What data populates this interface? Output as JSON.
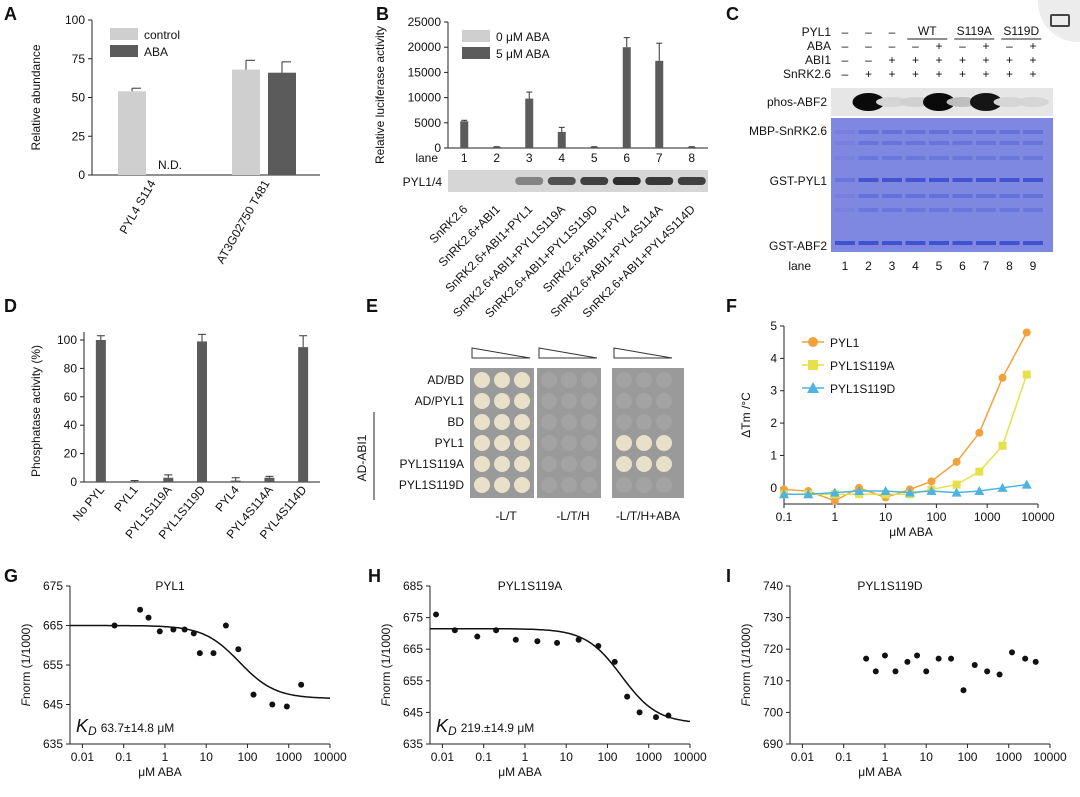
{
  "panel_labels": {
    "A": "A",
    "B": "B",
    "C": "C",
    "D": "D",
    "E": "E",
    "F": "F",
    "G": "G",
    "H": "H",
    "I": "I"
  },
  "colors": {
    "dark": "#5b5b5b",
    "light": "#cfcfcf",
    "orange": "#f2a23c",
    "yellow": "#e6e14a",
    "blue": "#4fb3e0",
    "gel_blue": "#3d4fcf"
  },
  "chart_data": [
    {
      "id": "A",
      "type": "bar",
      "ylabel": "Relative abundance",
      "ylim": [
        0,
        100
      ],
      "yticks": [
        0,
        25,
        50,
        75,
        100
      ],
      "categories": [
        "PYL4 S114",
        "AT3G02750 T481"
      ],
      "series": [
        {
          "name": "control",
          "values": [
            54,
            68
          ],
          "errors": [
            2,
            6
          ]
        },
        {
          "name": "ABA",
          "values": [
            null,
            66
          ],
          "errors": [
            null,
            7
          ]
        }
      ],
      "annotation": "N.D."
    },
    {
      "id": "B",
      "type": "bar",
      "ylabel": "Relative luciferase activity",
      "ylim": [
        0,
        25000
      ],
      "yticks": [
        0,
        5000,
        10000,
        15000,
        20000,
        25000
      ],
      "lane_label": "lane",
      "lanes": [
        "1",
        "2",
        "3",
        "4",
        "5",
        "6",
        "7",
        "8"
      ],
      "series": [
        {
          "name": "0 μM ABA",
          "values": [
            0,
            0,
            0,
            0,
            0,
            0,
            0,
            0
          ]
        },
        {
          "name": "5 μM ABA",
          "values": [
            5300,
            200,
            9800,
            3200,
            200,
            20000,
            17300,
            200
          ],
          "errors": [
            200,
            50,
            1300,
            900,
            50,
            1900,
            3500,
            50
          ]
        }
      ],
      "blot_label": "PYL1/4",
      "blot_intensity": [
        0,
        0,
        0.4,
        0.7,
        0.8,
        0.9,
        0.85,
        0.8
      ],
      "categories": [
        "SnRK2.6",
        "SnRK2.6+ABI1",
        "SnRK2.6+ABI1+PYL1",
        "SnRK2.6+ABI1+PYL1S119A",
        "SnRK2.6+ABI1+PYL1S119D",
        "SnRK2.6+ABI1+PYL4",
        "SnRK2.6+ABI1+PYL4S114A",
        "SnRK2.6+ABI1+PYL4S114D"
      ]
    },
    {
      "id": "D",
      "type": "bar",
      "ylabel": "Phosphatase activity (%)",
      "ylim": [
        0,
        100
      ],
      "yticks": [
        0,
        20,
        40,
        60,
        80,
        100
      ],
      "categories": [
        "No PYL",
        "PYL1",
        "PYL1S119A",
        "PYL1S119D",
        "PYL4",
        "PYL4S114A",
        "PYL4S114D"
      ],
      "values": [
        100,
        0,
        3,
        99,
        1,
        3,
        95
      ],
      "errors": [
        3,
        1,
        2,
        5,
        2,
        1,
        8
      ]
    },
    {
      "id": "F",
      "type": "line",
      "ylabel": "ΔTm /°C",
      "xlabel": "μM ABA",
      "xscale": "log",
      "xlim": [
        0.1,
        10000
      ],
      "ylim": [
        -0.5,
        5
      ],
      "xticks": [
        "0.1",
        "1",
        "10",
        "100",
        "1000",
        "10000"
      ],
      "yticks": [
        0,
        1,
        2,
        3,
        4,
        5
      ],
      "series": [
        {
          "name": "PYL1",
          "marker": "circle",
          "x": [
            0.1,
            0.3,
            1,
            3,
            10,
            30,
            80,
            250,
            700,
            2000,
            6000
          ],
          "y": [
            -0.05,
            -0.1,
            -0.4,
            0,
            -0.3,
            -0.05,
            0.2,
            0.8,
            1.7,
            3.4,
            4.8
          ]
        },
        {
          "name": "PYL1S119A",
          "marker": "square",
          "x": [
            0.1,
            0.3,
            1,
            3,
            10,
            30,
            80,
            250,
            700,
            2000,
            6000
          ],
          "y": [
            -0.2,
            -0.2,
            -0.2,
            -0.2,
            -0.2,
            -0.2,
            -0.05,
            0.1,
            0.5,
            1.3,
            3.5
          ]
        },
        {
          "name": "PYL1S119D",
          "marker": "triangle",
          "x": [
            0.1,
            0.3,
            1,
            3,
            10,
            30,
            80,
            250,
            700,
            2000,
            6000
          ],
          "y": [
            -0.2,
            -0.2,
            -0.15,
            -0.1,
            -0.1,
            -0.15,
            -0.1,
            -0.15,
            -0.1,
            0,
            0.1
          ]
        }
      ]
    },
    {
      "id": "G",
      "type": "scatter",
      "title": "PYL1",
      "ylabel_italic": "F",
      "ylabel": "norm (1/1000)",
      "xlabel": "μM ABA",
      "xscale": "log",
      "xlim": [
        0.005,
        10000
      ],
      "ylim": [
        635,
        675
      ],
      "xticks": [
        "0.01",
        "0.1",
        "1",
        "10",
        "100",
        "1000",
        "10000"
      ],
      "yticks": [
        635,
        645,
        655,
        665,
        675
      ],
      "x": [
        0.06,
        0.25,
        0.4,
        0.75,
        1.6,
        3,
        5,
        7,
        15,
        30,
        60,
        140,
        400,
        900,
        2000
      ],
      "y": [
        665,
        669,
        667,
        663.5,
        664,
        664,
        663,
        658,
        658,
        665,
        659,
        647.5,
        645,
        644.5,
        650
      ],
      "fit": {
        "kd": 63.7,
        "top": 665,
        "bottom": 646.5
      },
      "kd_label": "K",
      "kd_sub": "D",
      "kd_text": "63.7±14.8 μM"
    },
    {
      "id": "H",
      "type": "scatter",
      "title": "PYL1S119A",
      "ylabel_italic": "F",
      "ylabel": "norm (1/1000)",
      "xlabel": "μM ABA",
      "xscale": "log",
      "xlim": [
        0.005,
        10000
      ],
      "ylim": [
        635,
        685
      ],
      "xticks": [
        "0.01",
        "0.1",
        "1",
        "10",
        "100",
        "1000",
        "10000"
      ],
      "yticks": [
        635,
        645,
        655,
        665,
        675,
        685
      ],
      "x": [
        0.007,
        0.02,
        0.07,
        0.2,
        0.6,
        2,
        6,
        20,
        60,
        150,
        300,
        600,
        1500,
        3000
      ],
      "y": [
        676,
        671,
        669,
        671,
        668,
        667.5,
        667,
        668,
        666,
        661,
        650,
        645,
        643.5,
        644
      ],
      "fit": {
        "kd": 219,
        "top": 671.5,
        "bottom": 641.5
      },
      "kd_label": "K",
      "kd_sub": "D",
      "kd_text": "219.±14.9 μM"
    },
    {
      "id": "I",
      "type": "scatter",
      "title": "PYL1S119D",
      "ylabel_italic": "F",
      "ylabel": "norm (1/1000)",
      "xlabel": "μM ABA",
      "xscale": "log",
      "xlim": [
        0.005,
        10000
      ],
      "ylim": [
        690,
        740
      ],
      "xticks": [
        "0.01",
        "0.1",
        "1",
        "10",
        "100",
        "1000",
        "10000"
      ],
      "yticks": [
        690,
        700,
        710,
        720,
        730,
        740
      ],
      "x": [
        0.35,
        0.6,
        1,
        1.8,
        3.5,
        6,
        10,
        20,
        40,
        80,
        150,
        300,
        600,
        1200,
        2500,
        4500
      ],
      "y": [
        717,
        713,
        718,
        713,
        716,
        718,
        713,
        717,
        717,
        707,
        715,
        713,
        712,
        719,
        717,
        716
      ]
    }
  ],
  "panelC": {
    "row_labels": [
      "PYL1",
      "ABA",
      "ABI1",
      "SnRK2.6"
    ],
    "group_labels": [
      "WT",
      "S119A",
      "S119D"
    ],
    "rows": [
      [
        "–",
        "–",
        "–",
        "",
        "",
        "",
        "",
        "",
        ""
      ],
      [
        "–",
        "–",
        "–",
        "–",
        "+",
        "–",
        "+",
        "–",
        "+"
      ],
      [
        "–",
        "–",
        "+",
        "+",
        "+",
        "+",
        "+",
        "+",
        "+"
      ],
      [
        "–",
        "+",
        "+",
        "+",
        "+",
        "+",
        "+",
        "+",
        "+"
      ]
    ],
    "blot_label": "phos-ABF2",
    "phos_intensity": [
      0,
      1,
      0.1,
      0.12,
      1,
      0.2,
      0.95,
      0.1,
      0.1
    ],
    "gel_labels": [
      "MBP-SnRK2.6",
      "GST-PYL1",
      "GST-ABF2"
    ],
    "lane_label": "lane",
    "lanes": [
      "1",
      "2",
      "3",
      "4",
      "5",
      "6",
      "7",
      "8",
      "9"
    ]
  },
  "panelE": {
    "column_labels": [
      "-L/T",
      "-L/T/H",
      "-L/T/H+ABA"
    ],
    "row_labels": [
      "AD/BD",
      "AD/PYL1",
      "BD",
      "PYL1",
      "PYL1S119A",
      "PYL1S119D"
    ],
    "group_label": "AD-ABI1",
    "growth": [
      [
        1,
        0,
        0
      ],
      [
        1,
        0,
        0
      ],
      [
        1,
        0,
        0
      ],
      [
        1,
        0,
        1
      ],
      [
        1,
        0,
        1
      ],
      [
        1,
        0,
        0
      ]
    ]
  }
}
